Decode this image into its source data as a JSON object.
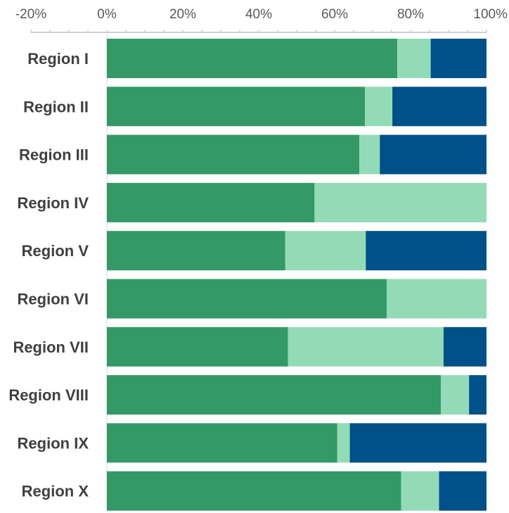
{
  "chart_data": {
    "type": "bar",
    "orientation": "horizontal",
    "stacked": "percent",
    "categories": [
      "Region I",
      "Region II",
      "Region III",
      "Region IV",
      "Region V",
      "Region VI",
      "Region VII",
      "Region VIII",
      "Region IX",
      "Region X"
    ],
    "series": [
      {
        "color": "#339966",
        "values": [
          76.5,
          68.0,
          66.5,
          54.7,
          47.0,
          73.7,
          47.7,
          88.0,
          60.7,
          77.5
        ]
      },
      {
        "color": "#93DBB6",
        "values": [
          8.8,
          7.2,
          5.4,
          45.3,
          21.2,
          26.3,
          41.0,
          7.4,
          3.3,
          10.0
        ]
      },
      {
        "color": "#00508A",
        "values": [
          14.7,
          24.8,
          28.1,
          0,
          31.8,
          0,
          11.3,
          4.6,
          36.0,
          12.5
        ]
      }
    ],
    "xaxis": {
      "position": "top",
      "min": -20,
      "max": 100,
      "ticks": [
        "-20%",
        "0%",
        "20%",
        "40%",
        "60%",
        "80%",
        "100%"
      ],
      "minor_step": 5
    },
    "grid": false,
    "legend": false
  }
}
